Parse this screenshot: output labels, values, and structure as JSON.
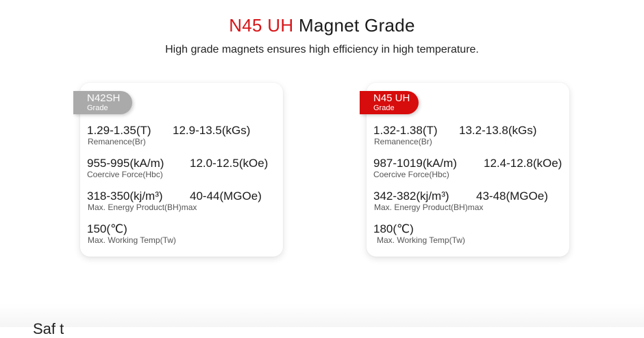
{
  "header": {
    "title_highlight": "N45 UH",
    "title_rest": "Magnet Grade",
    "subtitle": "High grade magnets ensures high efficiency in high temperature."
  },
  "cards": [
    {
      "grade_name": "N42SH",
      "grade_label": "Grade",
      "remanence_t": "1.29-1.35(T)",
      "remanence_kgs": "12.9-13.5(kGs)",
      "remanence_label": "Remanence(Br)",
      "coercive_kam": "955-995(kA/m)",
      "coercive_koe": "12.0-12.5(kOe)",
      "coercive_label": "Coercive Force(Hbc)",
      "energy_kjm": "318-350(kj/m³)",
      "energy_mgoe": "40-44(MGOe)",
      "energy_label": "Max. Energy Product(BH)max",
      "temp_value": "150(℃)",
      "temp_label": "Max. Working Temp(Tw)"
    },
    {
      "grade_name": "N45 UH",
      "grade_label": "Grade",
      "remanence_t": "1.32-1.38(T)",
      "remanence_kgs": "13.2-13.8(kGs)",
      "remanence_label": "Remanence(Br)",
      "coercive_kam": "987-1019(kA/m)",
      "coercive_koe": "12.4-12.8(kOe)",
      "coercive_label": "Coercive Force(Hbc)",
      "energy_kjm": "342-382(kj/m³)",
      "energy_mgoe": "43-48(MGOe)",
      "energy_label": "Max. Energy Product(BH)max",
      "temp_value": "180(℃)",
      "temp_label": "Max. Working Temp(Tw)"
    }
  ],
  "colors": {
    "accent_red": "#d71418",
    "badge_grey": "#aaaaaa",
    "badge_red": "#d70c0c"
  },
  "footer": {
    "partial_heading": "Saf t"
  }
}
